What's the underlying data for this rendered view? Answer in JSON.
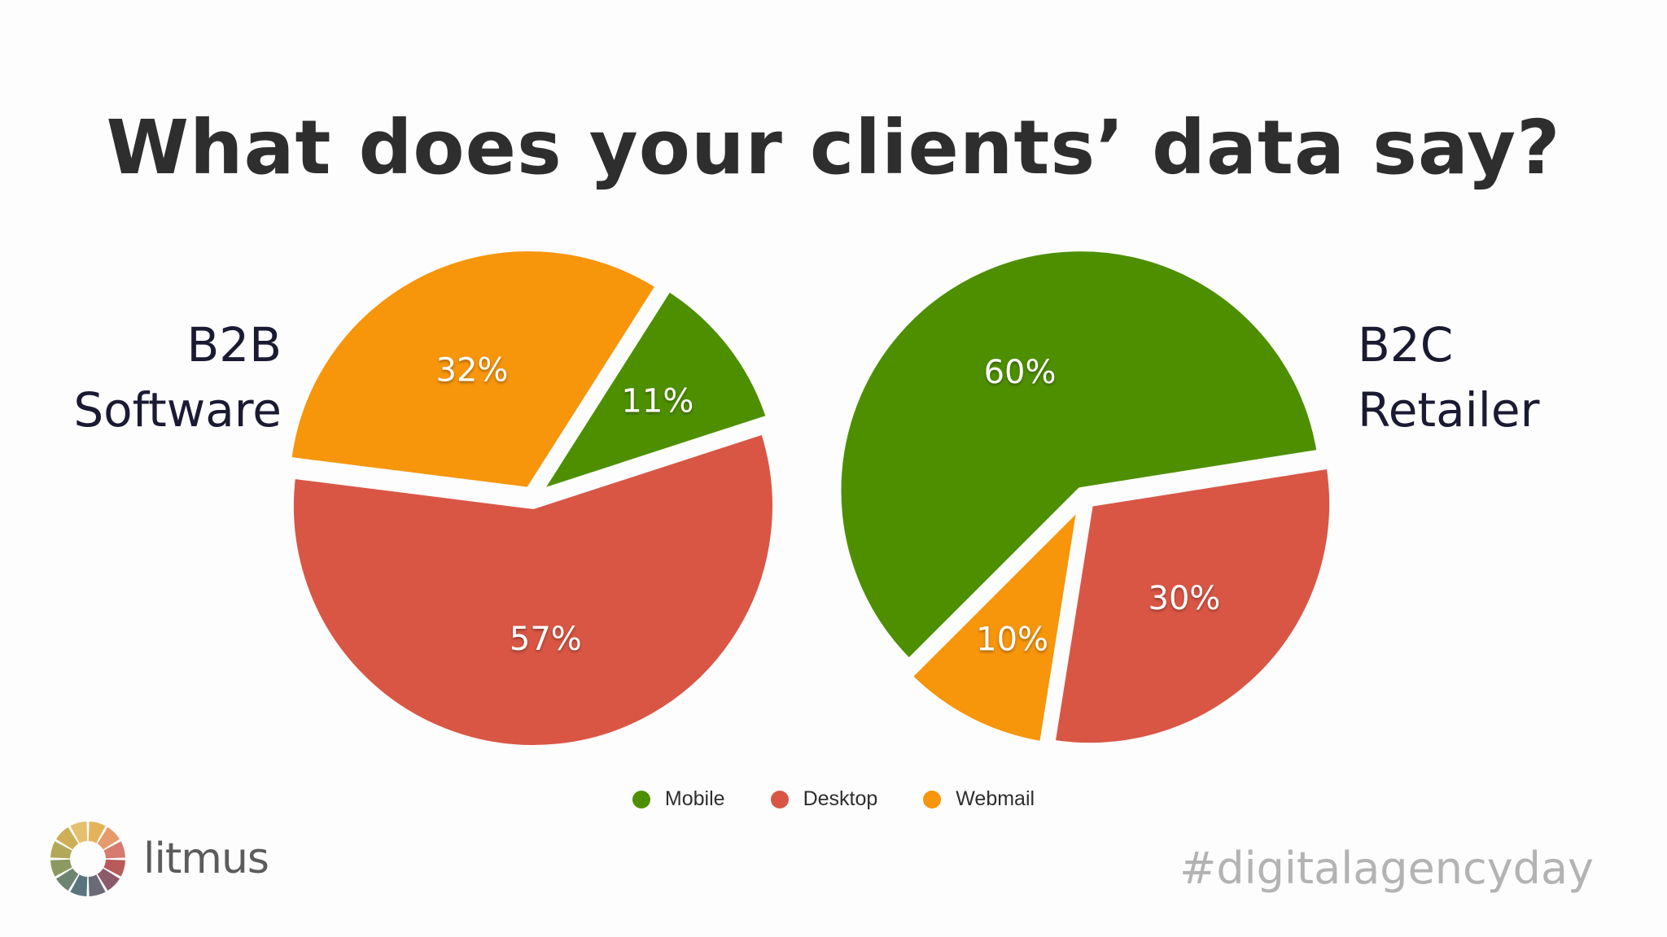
{
  "title": "What does your clients’ data say?",
  "colors": {
    "Mobile": "#4e8f00",
    "Desktop": "#d95645",
    "Webmail": "#f7950b"
  },
  "chart_data": [
    {
      "type": "pie",
      "title_lines": [
        "B2B",
        "Software"
      ],
      "labels": [
        "Desktop",
        "Webmail",
        "Mobile"
      ],
      "values": [
        57,
        32,
        11
      ],
      "data_labels": [
        "57%",
        "32%",
        "11%"
      ]
    },
    {
      "type": "pie",
      "title_lines": [
        "B2C",
        "Retailer"
      ],
      "labels": [
        "Mobile",
        "Desktop",
        "Webmail"
      ],
      "values": [
        60,
        30,
        10
      ],
      "data_labels": [
        "60%",
        "30%",
        "10%"
      ]
    }
  ],
  "legend": {
    "placement": "bottom",
    "items": [
      {
        "label": "Mobile",
        "color": "#4e8f00"
      },
      {
        "label": "Desktop",
        "color": "#d95645"
      },
      {
        "label": "Webmail",
        "color": "#f7950b"
      }
    ]
  },
  "logo": {
    "text": "litmus",
    "icon": "litmus-logo-icon"
  },
  "hashtag": "#digitalagencyday"
}
